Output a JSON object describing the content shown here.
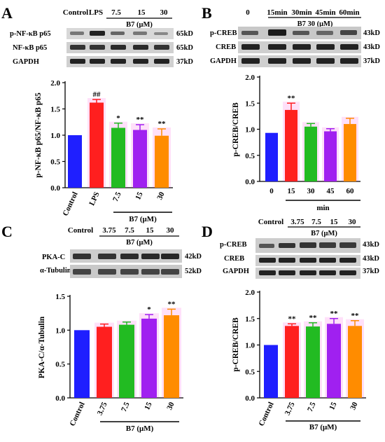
{
  "panels": [
    {
      "letter": "A",
      "lane_header": [
        "Control",
        "LPS",
        "7.5",
        "15",
        "30"
      ],
      "group_label": "B7 (μM)",
      "blots": [
        {
          "name": "p-NF-κB p65",
          "size": "65kD"
        },
        {
          "name": "NF-κB p65",
          "size": "65kD"
        },
        {
          "name": "GAPDH",
          "size": "37kD"
        }
      ]
    },
    {
      "letter": "B",
      "lane_header": [
        "0",
        "15min",
        "30min",
        "45min",
        "60min"
      ],
      "group_label": "B7 30 (μM)",
      "blots": [
        {
          "name": "p-CREB",
          "size": "43kD"
        },
        {
          "name": "CREB",
          "size": "43kD"
        },
        {
          "name": "GAPDH",
          "size": "37kD"
        }
      ]
    },
    {
      "letter": "C",
      "lane_header": [
        "Control",
        "3.75",
        "7.5",
        "15",
        "30"
      ],
      "group_label": "B7 (μM)",
      "blots": [
        {
          "name": "PKA-C",
          "size": "42kD"
        },
        {
          "name": "α-Tubulin",
          "size": "52kD"
        }
      ]
    },
    {
      "letter": "D",
      "lane_header": [
        "Control",
        "3.75",
        "7.5",
        "15",
        "30"
      ],
      "group_label": "B7 (μM)",
      "blots": [
        {
          "name": "p-CREB",
          "size": "43kD"
        },
        {
          "name": "CREB",
          "size": "43kD"
        },
        {
          "name": "GAPDH",
          "size": "37kD"
        }
      ]
    }
  ],
  "chart_data": [
    {
      "panel": "A",
      "type": "bar",
      "categories": [
        "Control",
        "LPS",
        "7.5",
        "15",
        "30"
      ],
      "values": [
        1.0,
        1.62,
        1.14,
        1.1,
        0.99
      ],
      "errors": [
        0,
        0.06,
        0.09,
        0.1,
        0.13
      ],
      "sig": [
        "",
        "##",
        "*",
        "**",
        "**"
      ],
      "colors": [
        "#1f1fff",
        "#ff1f1f",
        "#22bb22",
        "#a020f0",
        "#ff8c00"
      ],
      "ylabel": "p-NF-κB p65/NF-κB p65",
      "xlabel": "B7 (μM)",
      "ylim": [
        0,
        2.0
      ],
      "yticks": [
        0.0,
        0.5,
        1.0,
        1.5,
        2.0
      ]
    },
    {
      "panel": "B",
      "type": "bar",
      "categories": [
        "0",
        "15",
        "30",
        "45",
        "60"
      ],
      "values": [
        0.93,
        1.37,
        1.05,
        0.96,
        1.1
      ],
      "errors": [
        0,
        0.13,
        0.06,
        0.05,
        0.11
      ],
      "sig": [
        "",
        "**",
        "",
        "",
        ""
      ],
      "colors": [
        "#1f1fff",
        "#ff1f1f",
        "#22bb22",
        "#a020f0",
        "#ff8c00"
      ],
      "ylabel": "p-CREB/CREB",
      "xlabel": "min",
      "ylim": [
        0,
        2.0
      ],
      "yticks": [
        0.0,
        0.5,
        1.0,
        1.5,
        2.0
      ]
    },
    {
      "panel": "C",
      "type": "bar",
      "categories": [
        "Control",
        "3.75",
        "7.5",
        "15",
        "30"
      ],
      "values": [
        1.0,
        1.05,
        1.08,
        1.17,
        1.22
      ],
      "errors": [
        0,
        0.04,
        0.04,
        0.06,
        0.09
      ],
      "sig": [
        "",
        "",
        "",
        "*",
        "**"
      ],
      "colors": [
        "#1f1fff",
        "#ff1f1f",
        "#22bb22",
        "#a020f0",
        "#ff8c00"
      ],
      "ylabel": "PKA-C/α-Tubulin",
      "xlabel": "B7 (μM)",
      "ylim": [
        0,
        1.5
      ],
      "yticks": [
        0.0,
        0.5,
        1.0,
        1.5
      ]
    },
    {
      "panel": "D",
      "type": "bar",
      "categories": [
        "Control",
        "3.75",
        "7.5",
        "15",
        "30"
      ],
      "values": [
        1.0,
        1.36,
        1.35,
        1.4,
        1.36
      ],
      "errors": [
        0,
        0.04,
        0.07,
        0.1,
        0.1
      ],
      "sig": [
        "",
        "**",
        "**",
        "**",
        "**"
      ],
      "colors": [
        "#1f1fff",
        "#ff1f1f",
        "#22bb22",
        "#a020f0",
        "#ff8c00"
      ],
      "ylabel": "p-CREB/CREB",
      "xlabel": "B7 (μM)",
      "ylim": [
        0,
        2.0
      ],
      "yticks": [
        0.0,
        0.5,
        1.0,
        1.5,
        2.0
      ]
    }
  ]
}
